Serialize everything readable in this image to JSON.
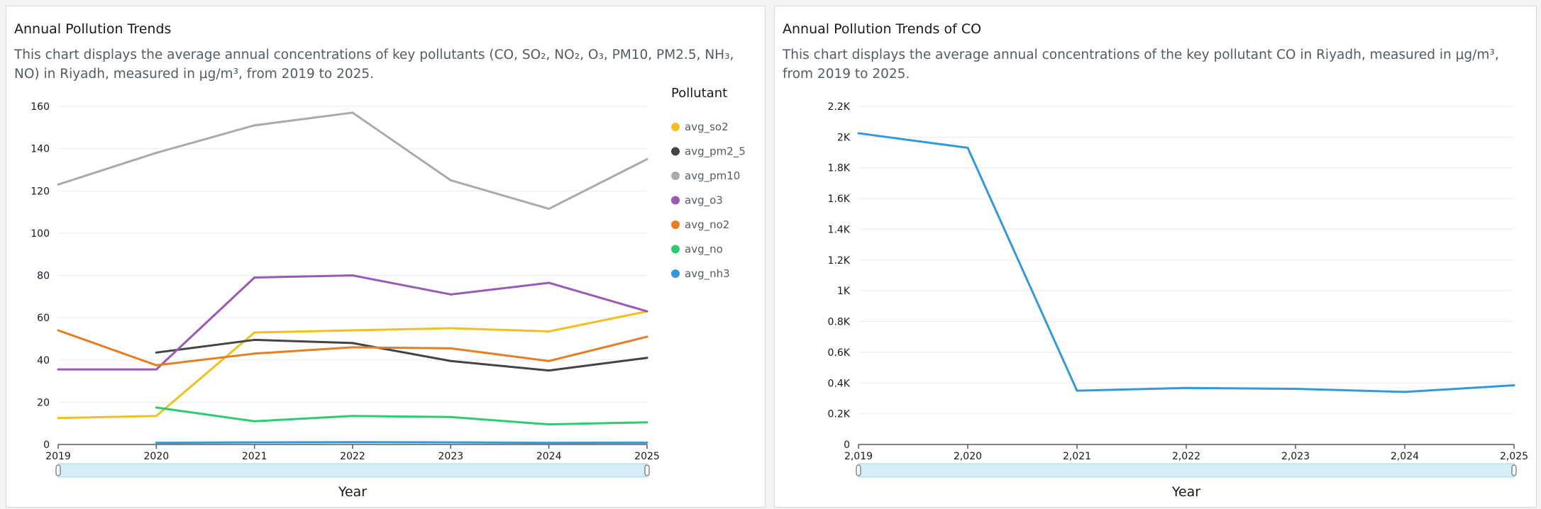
{
  "left_panel": {
    "title": "Annual Pollution Trends",
    "description": "This chart displays the average annual concentrations of key pollutants (CO, SO₂, NO₂, O₃, PM10, PM2.5, NH₃, NO) in Riyadh, measured in μg/m³, from 2019 to 2025."
  },
  "right_panel": {
    "title": "Annual Pollution Trends of CO",
    "description": "This chart displays the average annual concentrations of the key pollutant CO in Riyadh, measured in μg/m³, from 2019 to 2025."
  },
  "chart_data": [
    {
      "type": "line",
      "title": "Annual Pollution Trends",
      "xlabel": "Year",
      "ylabel": "",
      "x": [
        2019,
        2020,
        2021,
        2022,
        2023,
        2024,
        2025
      ],
      "x_tick_labels": [
        "2019",
        "2020",
        "2021",
        "2022",
        "2023",
        "2024",
        "2025"
      ],
      "ylim": [
        0,
        160
      ],
      "y_ticks": [
        0,
        20,
        40,
        60,
        80,
        100,
        120,
        140,
        160
      ],
      "y_tick_labels": [
        "0",
        "20",
        "40",
        "60",
        "80",
        "100",
        "120",
        "140",
        "160"
      ],
      "grid": true,
      "legend_title": "Pollutant",
      "legend_position": "right",
      "series": [
        {
          "name": "avg_so2",
          "color": "#f2c01e",
          "values": [
            12.5,
            13.5,
            53,
            54,
            55,
            53.5,
            63
          ]
        },
        {
          "name": "avg_pm2_5",
          "color": "#444444",
          "values": [
            null,
            43.5,
            49.5,
            48,
            39.5,
            35,
            41
          ]
        },
        {
          "name": "avg_pm10",
          "color": "#aaaaaa",
          "values": [
            123,
            138,
            151,
            157,
            125,
            111.5,
            135
          ]
        },
        {
          "name": "avg_o3",
          "color": "#9b59b6",
          "values": [
            35.5,
            35.5,
            79,
            80,
            71,
            76.5,
            63
          ]
        },
        {
          "name": "avg_no2",
          "color": "#e67e22",
          "values": [
            54,
            37.5,
            43,
            46,
            45.5,
            39.5,
            51
          ]
        },
        {
          "name": "avg_no",
          "color": "#2ecc71",
          "values": [
            null,
            17.5,
            11,
            13.5,
            13,
            9.5,
            10.5
          ]
        },
        {
          "name": "avg_nh3",
          "color": "#3498db",
          "values": [
            null,
            0.8,
            1,
            1.1,
            1,
            0.8,
            0.9
          ]
        }
      ]
    },
    {
      "type": "line",
      "title": "Annual Pollution Trends of CO",
      "xlabel": "Year",
      "ylabel": "",
      "x": [
        2019,
        2020,
        2021,
        2022,
        2023,
        2024,
        2025
      ],
      "x_tick_labels": [
        "2,019",
        "2,020",
        "2,021",
        "2,022",
        "2,023",
        "2,024",
        "2,025"
      ],
      "ylim": [
        0,
        2200
      ],
      "y_ticks": [
        0,
        200,
        400,
        600,
        800,
        1000,
        1200,
        1400,
        1600,
        1800,
        2000,
        2200
      ],
      "y_tick_labels": [
        "0",
        "0.2K",
        "0.4K",
        "0.6K",
        "0.8K",
        "1K",
        "1.2K",
        "1.4K",
        "1.6K",
        "1.8K",
        "2K",
        "2.2K"
      ],
      "grid": true,
      "series": [
        {
          "color": "#3498db",
          "values": [
            2025,
            1930,
            350,
            368,
            362,
            342,
            385
          ]
        }
      ]
    }
  ]
}
